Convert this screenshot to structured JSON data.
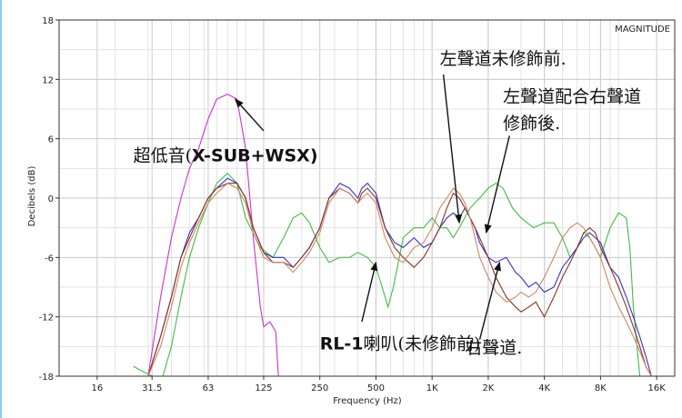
{
  "chart_data": {
    "type": "line",
    "title": "",
    "corner_label": "MAGNITUDE",
    "xlabel": "Frequency (Hz)",
    "ylabel": "Decibels (dB)",
    "x_scale": "log",
    "xlim": [
      10,
      20000
    ],
    "ylim": [
      -18,
      18
    ],
    "grid": true,
    "x_ticks": [
      16,
      31.5,
      63,
      125,
      250,
      500,
      1000,
      2000,
      4000,
      8000,
      16000
    ],
    "x_tick_labels": [
      "16",
      "31.5",
      "63",
      "125",
      "250",
      "500",
      "1K",
      "2K",
      "4K",
      "8K",
      "16K"
    ],
    "y_ticks": [
      18,
      12,
      6,
      0,
      -6,
      -12,
      -18
    ],
    "y_tick_labels": [
      "18",
      "12",
      "6",
      "0",
      "-6",
      "-12",
      "-18"
    ],
    "series": [
      {
        "color": "#cc33cc",
        "points": [
          [
            30,
            -18
          ],
          [
            35,
            -10
          ],
          [
            40,
            -4
          ],
          [
            45,
            0
          ],
          [
            50,
            3
          ],
          [
            56,
            5
          ],
          [
            63,
            8
          ],
          [
            70,
            10
          ],
          [
            80,
            10.5
          ],
          [
            90,
            10
          ],
          [
            100,
            5
          ],
          [
            110,
            -4
          ],
          [
            120,
            -11
          ],
          [
            125,
            -13
          ],
          [
            135,
            -12.5
          ],
          [
            145,
            -13.5
          ],
          [
            150,
            -18
          ]
        ]
      },
      {
        "color": "#44bb44",
        "points": [
          [
            25,
            -17
          ],
          [
            31.5,
            -18
          ],
          [
            36,
            -18
          ],
          [
            40,
            -15
          ],
          [
            45,
            -10
          ],
          [
            50,
            -6
          ],
          [
            56,
            -3
          ],
          [
            63,
            -0.5
          ],
          [
            70,
            1.5
          ],
          [
            80,
            2.5
          ],
          [
            90,
            1.5
          ],
          [
            100,
            -2
          ],
          [
            120,
            -5
          ],
          [
            140,
            -6
          ],
          [
            160,
            -4
          ],
          [
            180,
            -2
          ],
          [
            200,
            -1.5
          ],
          [
            220,
            -2.5
          ],
          [
            250,
            -5
          ],
          [
            280,
            -6.5
          ],
          [
            320,
            -6
          ],
          [
            360,
            -6
          ],
          [
            400,
            -5.5
          ],
          [
            450,
            -6
          ],
          [
            500,
            -7
          ],
          [
            540,
            -9
          ],
          [
            580,
            -11
          ],
          [
            620,
            -9
          ],
          [
            700,
            -4
          ],
          [
            800,
            -3
          ],
          [
            900,
            -3
          ],
          [
            1000,
            -2
          ],
          [
            1100,
            -3
          ],
          [
            1200,
            -3
          ],
          [
            1300,
            -4
          ],
          [
            1400,
            -3
          ],
          [
            1600,
            -1
          ],
          [
            1800,
            0
          ],
          [
            2000,
            1
          ],
          [
            2200,
            1.5
          ],
          [
            2400,
            1
          ],
          [
            2700,
            -1
          ],
          [
            3000,
            -2
          ],
          [
            3500,
            -3
          ],
          [
            4000,
            -2.5
          ],
          [
            4500,
            -2.5
          ],
          [
            5000,
            -4
          ],
          [
            5500,
            -6
          ],
          [
            6000,
            -5
          ],
          [
            6500,
            -3.5
          ],
          [
            7000,
            -4
          ],
          [
            7500,
            -5
          ],
          [
            8000,
            -6
          ],
          [
            9000,
            -3
          ],
          [
            10000,
            -1.5
          ],
          [
            11000,
            -2
          ],
          [
            11500,
            -5
          ],
          [
            12000,
            -11
          ],
          [
            13000,
            -18
          ]
        ]
      },
      {
        "color": "#3333cc",
        "points": [
          [
            30,
            -18
          ],
          [
            35,
            -14
          ],
          [
            40,
            -10
          ],
          [
            45,
            -6
          ],
          [
            50,
            -3.5
          ],
          [
            56,
            -2
          ],
          [
            63,
            0
          ],
          [
            70,
            1
          ],
          [
            80,
            2
          ],
          [
            90,
            1.5
          ],
          [
            100,
            0
          ],
          [
            110,
            -3
          ],
          [
            125,
            -5.5
          ],
          [
            140,
            -6
          ],
          [
            160,
            -6
          ],
          [
            180,
            -7
          ],
          [
            200,
            -6
          ],
          [
            220,
            -5
          ],
          [
            250,
            -3
          ],
          [
            280,
            0
          ],
          [
            320,
            1.5
          ],
          [
            360,
            1
          ],
          [
            400,
            0
          ],
          [
            420,
            1
          ],
          [
            450,
            1.5
          ],
          [
            500,
            0.5
          ],
          [
            560,
            -3
          ],
          [
            630,
            -4.5
          ],
          [
            700,
            -5
          ],
          [
            800,
            -4
          ],
          [
            900,
            -5
          ],
          [
            1000,
            -4.5
          ],
          [
            1100,
            -3
          ],
          [
            1200,
            -2
          ],
          [
            1300,
            -1.5
          ],
          [
            1400,
            -2
          ],
          [
            1500,
            -1
          ],
          [
            1600,
            -2
          ],
          [
            1700,
            -3
          ],
          [
            1800,
            -4.5
          ],
          [
            2000,
            -6
          ],
          [
            2200,
            -6.5
          ],
          [
            2500,
            -6
          ],
          [
            2800,
            -7.5
          ],
          [
            3000,
            -8
          ],
          [
            3300,
            -9
          ],
          [
            3600,
            -8.5
          ],
          [
            4000,
            -9.5
          ],
          [
            4500,
            -9
          ],
          [
            5000,
            -7
          ],
          [
            5500,
            -6
          ],
          [
            6000,
            -5
          ],
          [
            6500,
            -4
          ],
          [
            7000,
            -3.5
          ],
          [
            7500,
            -4
          ],
          [
            8000,
            -4.5
          ],
          [
            9000,
            -7
          ],
          [
            10000,
            -8
          ],
          [
            11000,
            -10
          ],
          [
            12000,
            -12
          ],
          [
            13000,
            -14
          ],
          [
            14000,
            -16
          ],
          [
            15000,
            -18
          ]
        ]
      },
      {
        "color": "#883322",
        "points": [
          [
            30,
            -18
          ],
          [
            35,
            -14
          ],
          [
            40,
            -10
          ],
          [
            45,
            -6
          ],
          [
            50,
            -4
          ],
          [
            56,
            -2
          ],
          [
            63,
            0
          ],
          [
            70,
            1
          ],
          [
            80,
            1.5
          ],
          [
            90,
            1.5
          ],
          [
            100,
            0
          ],
          [
            110,
            -3
          ],
          [
            125,
            -5.5
          ],
          [
            140,
            -6.5
          ],
          [
            160,
            -6.5
          ],
          [
            180,
            -7
          ],
          [
            200,
            -6
          ],
          [
            220,
            -5
          ],
          [
            250,
            -3
          ],
          [
            280,
            0
          ],
          [
            320,
            1
          ],
          [
            360,
            0.5
          ],
          [
            400,
            -0.5
          ],
          [
            420,
            0.5
          ],
          [
            450,
            1
          ],
          [
            500,
            0
          ],
          [
            560,
            -3
          ],
          [
            630,
            -5
          ],
          [
            700,
            -6
          ],
          [
            800,
            -7
          ],
          [
            900,
            -6
          ],
          [
            1000,
            -4.5
          ],
          [
            1100,
            -3
          ],
          [
            1200,
            -1
          ],
          [
            1300,
            0.5
          ],
          [
            1400,
            0
          ],
          [
            1500,
            -1
          ],
          [
            1600,
            -2
          ],
          [
            1700,
            -3
          ],
          [
            1800,
            -4
          ],
          [
            2000,
            -6
          ],
          [
            2200,
            -8
          ],
          [
            2500,
            -10
          ],
          [
            2800,
            -11
          ],
          [
            3000,
            -11.5
          ],
          [
            3300,
            -11
          ],
          [
            3600,
            -10.5
          ],
          [
            4000,
            -12
          ],
          [
            4500,
            -10
          ],
          [
            5000,
            -8
          ],
          [
            5500,
            -6.5
          ],
          [
            6000,
            -5
          ],
          [
            6500,
            -3.5
          ],
          [
            7000,
            -3
          ],
          [
            7500,
            -3.5
          ],
          [
            8000,
            -5
          ],
          [
            9000,
            -7
          ],
          [
            10000,
            -9
          ],
          [
            11000,
            -11
          ],
          [
            12000,
            -13
          ],
          [
            13000,
            -15
          ],
          [
            14000,
            -17
          ],
          [
            15000,
            -18
          ]
        ]
      },
      {
        "color": "#cc8866",
        "points": [
          [
            30,
            -18
          ],
          [
            35,
            -15
          ],
          [
            40,
            -11
          ],
          [
            45,
            -7
          ],
          [
            50,
            -4.5
          ],
          [
            56,
            -2.5
          ],
          [
            63,
            -0.5
          ],
          [
            70,
            0.5
          ],
          [
            80,
            1.5
          ],
          [
            90,
            1
          ],
          [
            100,
            -0.5
          ],
          [
            110,
            -3.5
          ],
          [
            125,
            -6
          ],
          [
            140,
            -6.5
          ],
          [
            160,
            -6.5
          ],
          [
            180,
            -7.5
          ],
          [
            200,
            -6.5
          ],
          [
            220,
            -5.5
          ],
          [
            250,
            -3.5
          ],
          [
            280,
            -0.5
          ],
          [
            320,
            1
          ],
          [
            360,
            0.5
          ],
          [
            400,
            -0.5
          ],
          [
            420,
            0
          ],
          [
            450,
            0.5
          ],
          [
            500,
            -0.5
          ],
          [
            560,
            -4
          ],
          [
            630,
            -6
          ],
          [
            700,
            -6.5
          ],
          [
            800,
            -5
          ],
          [
            900,
            -4.5
          ],
          [
            1000,
            -3
          ],
          [
            1100,
            -1
          ],
          [
            1200,
            0
          ],
          [
            1300,
            1
          ],
          [
            1400,
            0.5
          ],
          [
            1500,
            -0.5
          ],
          [
            1600,
            -2
          ],
          [
            1700,
            -4
          ],
          [
            1800,
            -6
          ],
          [
            2000,
            -8
          ],
          [
            2200,
            -9.5
          ],
          [
            2500,
            -10.5
          ],
          [
            2800,
            -10
          ],
          [
            3000,
            -9.5
          ],
          [
            3300,
            -10
          ],
          [
            3600,
            -9.5
          ],
          [
            4000,
            -8
          ],
          [
            4500,
            -6
          ],
          [
            5000,
            -4
          ],
          [
            5500,
            -3
          ],
          [
            6000,
            -2.5
          ],
          [
            6500,
            -3
          ],
          [
            7000,
            -4
          ],
          [
            7500,
            -5
          ],
          [
            8000,
            -6
          ],
          [
            9000,
            -9
          ],
          [
            10000,
            -11
          ],
          [
            11000,
            -12.5
          ],
          [
            12000,
            -14
          ],
          [
            13000,
            -15.5
          ],
          [
            14000,
            -17
          ],
          [
            15000,
            -18
          ]
        ]
      }
    ],
    "annotations": [
      {
        "text": "左聲道未修飾前.",
        "style": "note",
        "label_at": [
          1100,
          13.5
        ],
        "arrow_from": [
          1150,
          12.5
        ],
        "arrow_to": [
          1400,
          -2.5
        ]
      },
      {
        "text": "左聲道配合右聲道",
        "style": "note",
        "label_at": [
          2400,
          9.7
        ]
      },
      {
        "text": "修飾後.",
        "style": "note",
        "label_at": [
          2400,
          7.0
        ],
        "arrow_from": [
          2600,
          6.3
        ],
        "arrow_to": [
          1950,
          -3.5
        ]
      },
      {
        "prefix": "超低音(",
        "text": "X-SUB+WSX)",
        "style": "mixed",
        "label_at": [
          25,
          3.7
        ],
        "arrow_from": [
          125,
          6.8
        ],
        "arrow_to": [
          88,
          10.0
        ]
      },
      {
        "text": "RL-1",
        "suffix": "喇叭(未修飾前)",
        "style": "mixed-rev",
        "label_at": [
          250,
          -15.3
        ],
        "arrow_from": [
          420,
          -12.5
        ],
        "arrow_to": [
          500,
          -6.5
        ]
      },
      {
        "text": "右聲道.",
        "style": "note",
        "label_at": [
          1500,
          -15.7
        ],
        "arrow_from": [
          1800,
          -14.3
        ],
        "arrow_to": [
          2300,
          -6.5
        ]
      }
    ]
  }
}
